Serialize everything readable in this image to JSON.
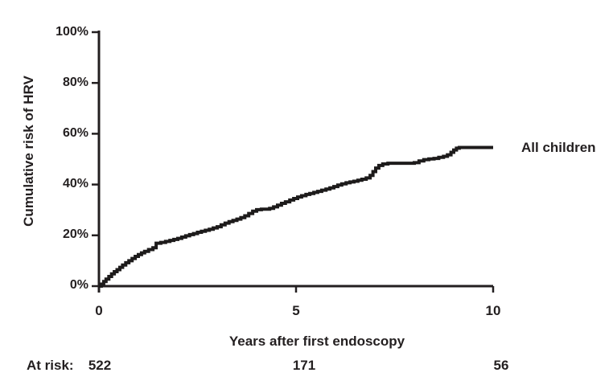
{
  "chart_data": {
    "type": "line",
    "subtype": "kaplan-meier-step",
    "title": "",
    "xlabel": "Years after first endoscopy",
    "ylabel": "Cumulative risk of HRV",
    "xlim": [
      0,
      10
    ],
    "ylim": [
      0,
      100
    ],
    "xticks": [
      "0",
      "5",
      "10"
    ],
    "xtick_values": [
      0,
      5,
      10
    ],
    "yticks": [
      "0%",
      "20%",
      "40%",
      "60%",
      "80%",
      "100%"
    ],
    "ytick_values": [
      0,
      20,
      40,
      60,
      80,
      100
    ],
    "grid": false,
    "legend": {
      "position": "right-of-curve-end",
      "entries": [
        "All children"
      ]
    },
    "line_color": "#1d1b1b",
    "text_color": "#231f20",
    "background_color": "#ffffff",
    "series": [
      {
        "name": "All children",
        "points": [
          [
            0,
            0
          ],
          [
            0.06,
            0.8
          ],
          [
            0.12,
            1.8
          ],
          [
            0.18,
            2.8
          ],
          [
            0.25,
            3.8
          ],
          [
            0.32,
            4.8
          ],
          [
            0.39,
            5.7
          ],
          [
            0.46,
            6.5
          ],
          [
            0.53,
            7.4
          ],
          [
            0.6,
            8.3
          ],
          [
            0.68,
            9.2
          ],
          [
            0.76,
            10
          ],
          [
            0.84,
            10.9
          ],
          [
            0.92,
            11.7
          ],
          [
            1.0,
            12.4
          ],
          [
            1.08,
            13.1
          ],
          [
            1.16,
            13.7
          ],
          [
            1.26,
            14.4
          ],
          [
            1.37,
            15.1
          ],
          [
            1.45,
            16.9
          ],
          [
            1.57,
            17.2
          ],
          [
            1.69,
            17.6
          ],
          [
            1.8,
            18.0
          ],
          [
            1.9,
            18.4
          ],
          [
            2.0,
            18.8
          ],
          [
            2.1,
            19.3
          ],
          [
            2.2,
            19.8
          ],
          [
            2.3,
            20.3
          ],
          [
            2.4,
            20.7
          ],
          [
            2.5,
            21.2
          ],
          [
            2.6,
            21.6
          ],
          [
            2.7,
            22.0
          ],
          [
            2.8,
            22.4
          ],
          [
            2.9,
            22.9
          ],
          [
            3.0,
            23.4
          ],
          [
            3.1,
            24.1
          ],
          [
            3.2,
            24.8
          ],
          [
            3.3,
            25.4
          ],
          [
            3.4,
            25.9
          ],
          [
            3.5,
            26.4
          ],
          [
            3.6,
            27.0
          ],
          [
            3.7,
            27.7
          ],
          [
            3.8,
            28.6
          ],
          [
            3.9,
            29.5
          ],
          [
            4.0,
            30.1
          ],
          [
            4.12,
            30.3
          ],
          [
            4.33,
            30.6
          ],
          [
            4.43,
            31.2
          ],
          [
            4.53,
            31.9
          ],
          [
            4.63,
            32.6
          ],
          [
            4.73,
            33.2
          ],
          [
            4.84,
            33.9
          ],
          [
            4.94,
            34.5
          ],
          [
            5.04,
            35.1
          ],
          [
            5.14,
            35.6
          ],
          [
            5.25,
            36.1
          ],
          [
            5.35,
            36.5
          ],
          [
            5.45,
            36.9
          ],
          [
            5.55,
            37.3
          ],
          [
            5.65,
            37.8
          ],
          [
            5.76,
            38.2
          ],
          [
            5.86,
            38.7
          ],
          [
            5.96,
            39.2
          ],
          [
            6.06,
            39.8
          ],
          [
            6.16,
            40.3
          ],
          [
            6.27,
            40.7
          ],
          [
            6.37,
            41.0
          ],
          [
            6.47,
            41.3
          ],
          [
            6.57,
            41.7
          ],
          [
            6.67,
            42.1
          ],
          [
            6.78,
            42.6
          ],
          [
            6.88,
            43.6
          ],
          [
            6.95,
            45.1
          ],
          [
            7.02,
            46.5
          ],
          [
            7.1,
            47.5
          ],
          [
            7.2,
            48.1
          ],
          [
            7.33,
            48.4
          ],
          [
            8.0,
            48.6
          ],
          [
            8.12,
            49.3
          ],
          [
            8.24,
            49.8
          ],
          [
            8.37,
            50.1
          ],
          [
            8.5,
            50.3
          ],
          [
            8.62,
            50.7
          ],
          [
            8.74,
            51.1
          ],
          [
            8.84,
            51.7
          ],
          [
            8.93,
            52.7
          ],
          [
            9.0,
            53.6
          ],
          [
            9.07,
            54.3
          ],
          [
            9.14,
            54.6
          ],
          [
            10,
            54.6
          ]
        ]
      }
    ],
    "at_risk": {
      "label": "At risk:",
      "times": [
        0,
        5,
        10
      ],
      "counts": [
        "522",
        "171",
        "56"
      ]
    }
  }
}
